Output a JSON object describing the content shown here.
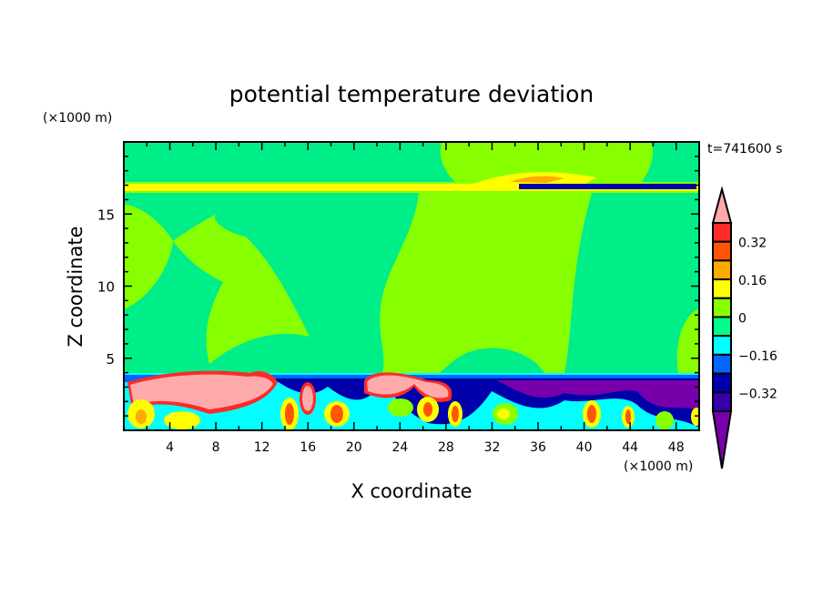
{
  "chart_data": {
    "type": "heatmap",
    "subtype": "filled-contour",
    "title": "potential temperature deviation",
    "xlabel": "X coordinate",
    "ylabel": "Z coordinate",
    "x_unit": "(×1000 m)",
    "y_unit": "(×1000 m)",
    "time_label": "t=741600 s",
    "xlim": [
      0,
      50
    ],
    "ylim": [
      0,
      20
    ],
    "x_ticks": [
      4,
      8,
      12,
      16,
      20,
      24,
      28,
      32,
      36,
      40,
      44,
      48
    ],
    "x_minor_step": 2,
    "y_ticks": [
      5,
      10,
      15
    ],
    "y_minor_step": 1,
    "grid": false,
    "colorbar": {
      "placement": "right",
      "levels": [
        0.4,
        0.32,
        0.24,
        0.16,
        0.08,
        0,
        -0.08,
        -0.16,
        -0.24,
        -0.32,
        -0.4
      ],
      "labels": [
        "0.32",
        "0.16",
        "0",
        "-0.16",
        "-0.32"
      ],
      "label_values": [
        0.32,
        0.16,
        0,
        -0.16,
        -0.32
      ],
      "over_color": "#ffaaaa",
      "under_color": "#7700aa",
      "colors": [
        "#ff2a2a",
        "#ff5500",
        "#ffaa00",
        "#ffff00",
        "#88ff00",
        "#00ff88",
        "#00ffff",
        "#0066ff",
        "#0000aa",
        "#3300aa"
      ]
    },
    "field_description_colors": {
      "background": "#88ff00",
      "near_zero_negative": "#00ff88"
    }
  }
}
